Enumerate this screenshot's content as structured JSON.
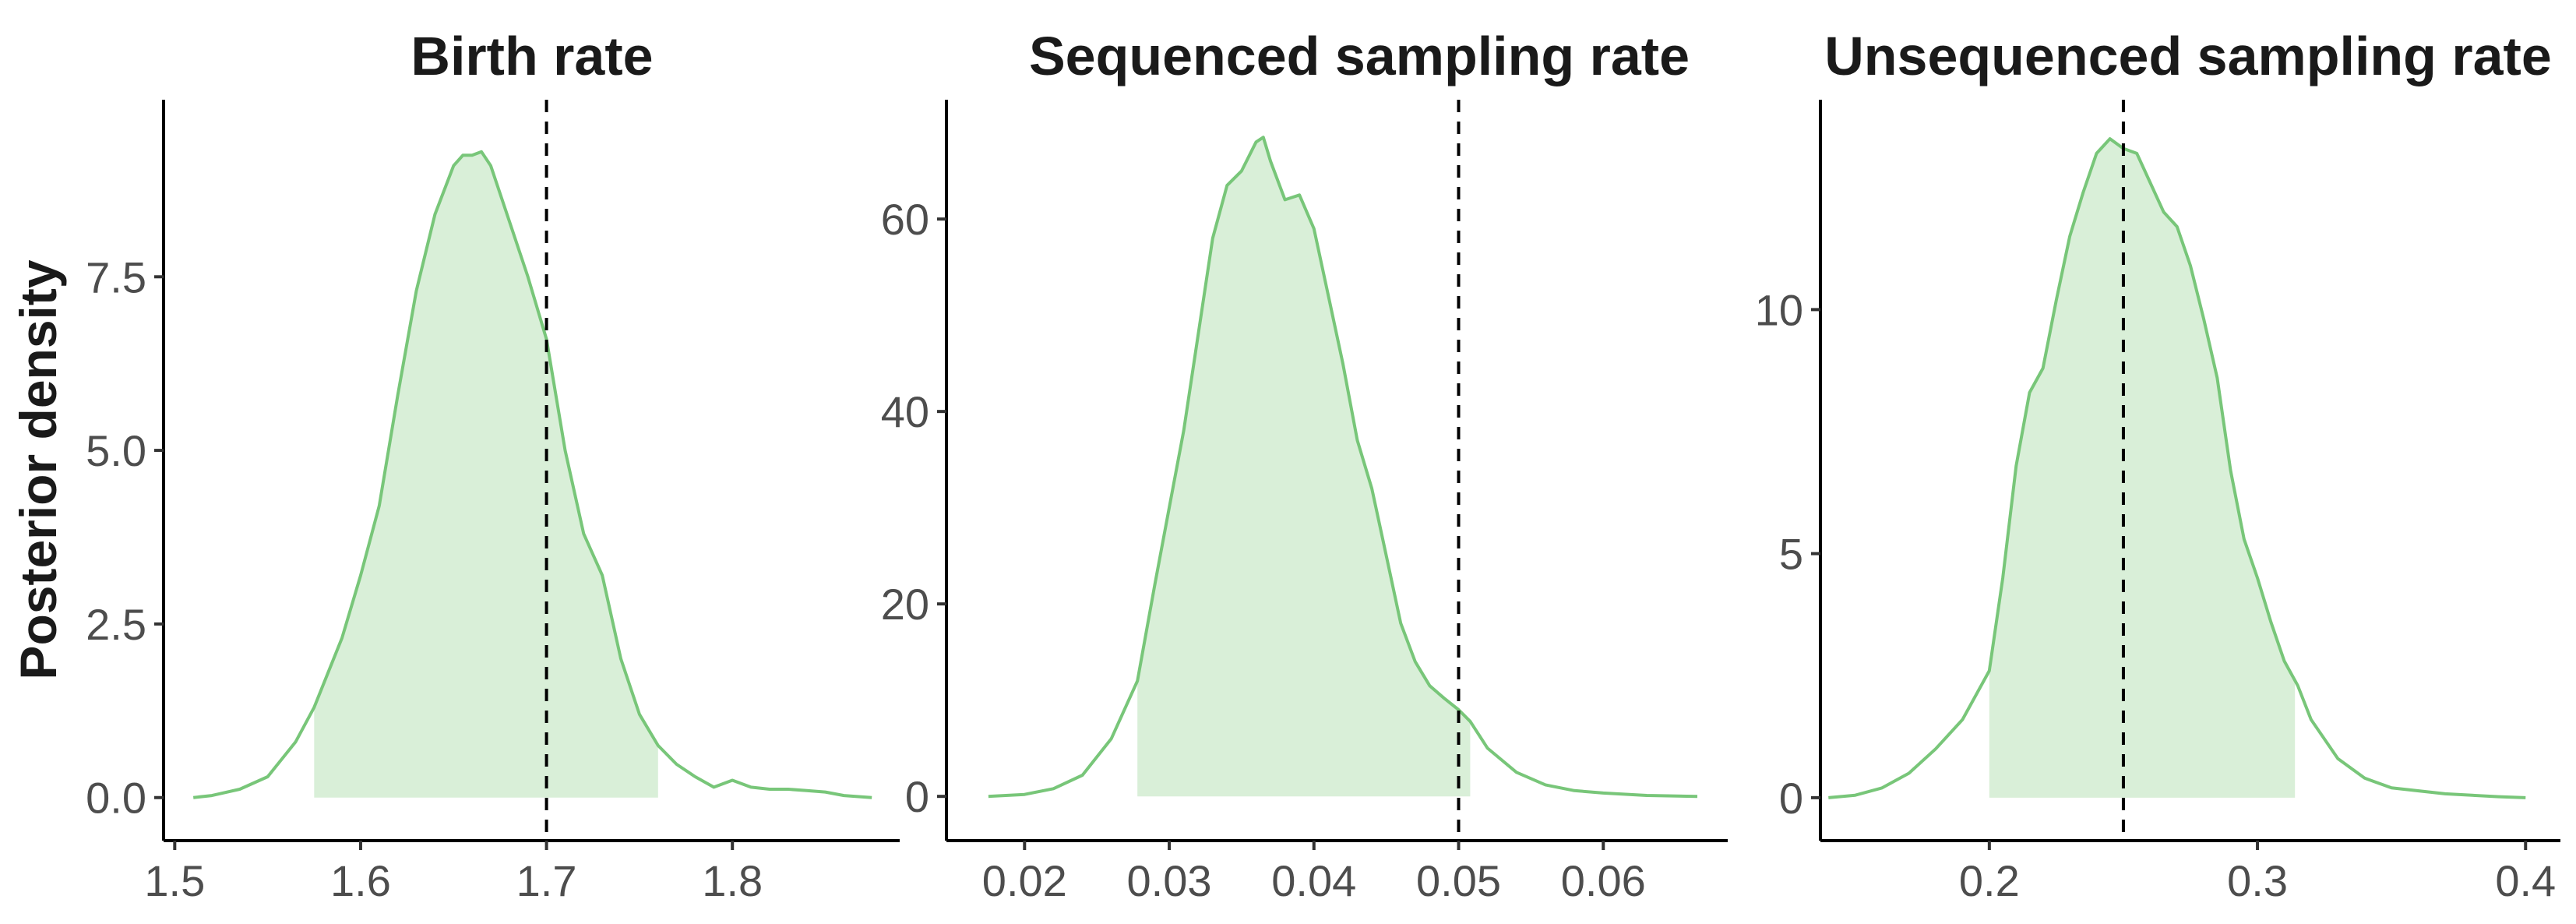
{
  "figure": {
    "ylabel": "Posterior density",
    "colors": {
      "line": "#78c679",
      "fill": "#d9efd8",
      "ref_line": "#000000",
      "axis": "#000000",
      "tick_label": "#4d4d4d"
    }
  },
  "chart_data": [
    {
      "type": "area",
      "title": "Birth rate",
      "xlabel": "",
      "ylabel": "Posterior density",
      "xlim": [
        1.494,
        1.89
      ],
      "ylim": [
        -0.62,
        10.05
      ],
      "xticks": [
        1.5,
        1.6,
        1.7,
        1.8
      ],
      "xtick_labels": [
        "1.5",
        "1.6",
        "1.7",
        "1.8"
      ],
      "yticks": [
        0,
        2.5,
        5,
        7.5
      ],
      "ytick_labels": [
        "0.0",
        "2.5",
        "5.0",
        "7.5"
      ],
      "reference_line": 1.7,
      "shaded_interval": [
        1.575,
        1.76
      ],
      "grid": false,
      "legend": "none",
      "x": [
        1.51,
        1.52,
        1.535,
        1.55,
        1.565,
        1.575,
        1.59,
        1.6,
        1.61,
        1.62,
        1.63,
        1.64,
        1.65,
        1.655,
        1.66,
        1.665,
        1.67,
        1.68,
        1.69,
        1.7,
        1.71,
        1.72,
        1.73,
        1.74,
        1.75,
        1.76,
        1.77,
        1.78,
        1.79,
        1.8,
        1.81,
        1.82,
        1.83,
        1.84,
        1.85,
        1.86,
        1.875
      ],
      "y": [
        0.0,
        0.03,
        0.12,
        0.3,
        0.8,
        1.3,
        2.3,
        3.2,
        4.2,
        5.8,
        7.3,
        8.4,
        9.1,
        9.25,
        9.25,
        9.3,
        9.1,
        8.3,
        7.5,
        6.6,
        5.0,
        3.8,
        3.2,
        2.0,
        1.2,
        0.75,
        0.48,
        0.3,
        0.15,
        0.25,
        0.15,
        0.12,
        0.12,
        0.1,
        0.08,
        0.03,
        0.0
      ]
    },
    {
      "type": "area",
      "title": "Sequenced sampling rate",
      "xlabel": "",
      "ylabel": "",
      "xlim": [
        0.0146,
        0.0686
      ],
      "ylim": [
        -4.6,
        72.4
      ],
      "xticks": [
        0.02,
        0.03,
        0.04,
        0.05,
        0.06
      ],
      "xtick_labels": [
        "0.02",
        "0.03",
        "0.04",
        "0.05",
        "0.06"
      ],
      "yticks": [
        0,
        20,
        40,
        60
      ],
      "ytick_labels": [
        "0",
        "20",
        "40",
        "60"
      ],
      "reference_line": 0.05,
      "shaded_interval": [
        0.0278,
        0.0508
      ],
      "grid": false,
      "legend": "none",
      "x": [
        0.0175,
        0.02,
        0.022,
        0.024,
        0.026,
        0.0278,
        0.029,
        0.03,
        0.031,
        0.032,
        0.033,
        0.034,
        0.035,
        0.036,
        0.0365,
        0.037,
        0.038,
        0.039,
        0.04,
        0.041,
        0.042,
        0.043,
        0.044,
        0.045,
        0.046,
        0.047,
        0.048,
        0.049,
        0.05,
        0.0508,
        0.052,
        0.054,
        0.056,
        0.058,
        0.06,
        0.063,
        0.0665
      ],
      "y": [
        0.0,
        0.2,
        0.8,
        2.2,
        6.0,
        12.0,
        22.0,
        30.0,
        38.0,
        48.0,
        58.0,
        63.5,
        65.0,
        68.0,
        68.5,
        66.0,
        62.0,
        62.5,
        59.0,
        52.0,
        45.0,
        37.0,
        32.0,
        25.0,
        18.0,
        14.0,
        11.5,
        10.2,
        9.0,
        7.8,
        5.0,
        2.5,
        1.2,
        0.6,
        0.35,
        0.1,
        0.0
      ]
    },
    {
      "type": "area",
      "title": "Unsequenced sampling rate",
      "xlabel": "",
      "ylabel": "",
      "xlim": [
        0.137,
        0.413
      ],
      "ylim": [
        -0.88,
        14.3
      ],
      "xticks": [
        0.2,
        0.3,
        0.4
      ],
      "xtick_labels": [
        "0.2",
        "0.3",
        "0.4"
      ],
      "yticks": [
        0,
        5,
        10
      ],
      "ytick_labels": [
        "0",
        "5",
        "10"
      ],
      "reference_line": 0.25,
      "shaded_interval": [
        0.2,
        0.314
      ],
      "grid": false,
      "legend": "none",
      "x": [
        0.14,
        0.15,
        0.16,
        0.17,
        0.18,
        0.19,
        0.2,
        0.205,
        0.21,
        0.215,
        0.22,
        0.225,
        0.23,
        0.235,
        0.24,
        0.245,
        0.25,
        0.255,
        0.26,
        0.265,
        0.27,
        0.275,
        0.28,
        0.285,
        0.29,
        0.295,
        0.3,
        0.305,
        0.31,
        0.315,
        0.32,
        0.33,
        0.34,
        0.35,
        0.37,
        0.39,
        0.4
      ],
      "y": [
        0.0,
        0.05,
        0.2,
        0.5,
        1.0,
        1.6,
        2.6,
        4.5,
        6.8,
        8.3,
        8.8,
        10.2,
        11.5,
        12.4,
        13.2,
        13.5,
        13.3,
        13.2,
        12.6,
        12.0,
        11.7,
        10.9,
        9.8,
        8.6,
        6.7,
        5.3,
        4.5,
        3.6,
        2.8,
        2.3,
        1.6,
        0.8,
        0.4,
        0.2,
        0.08,
        0.02,
        0.0
      ]
    }
  ]
}
